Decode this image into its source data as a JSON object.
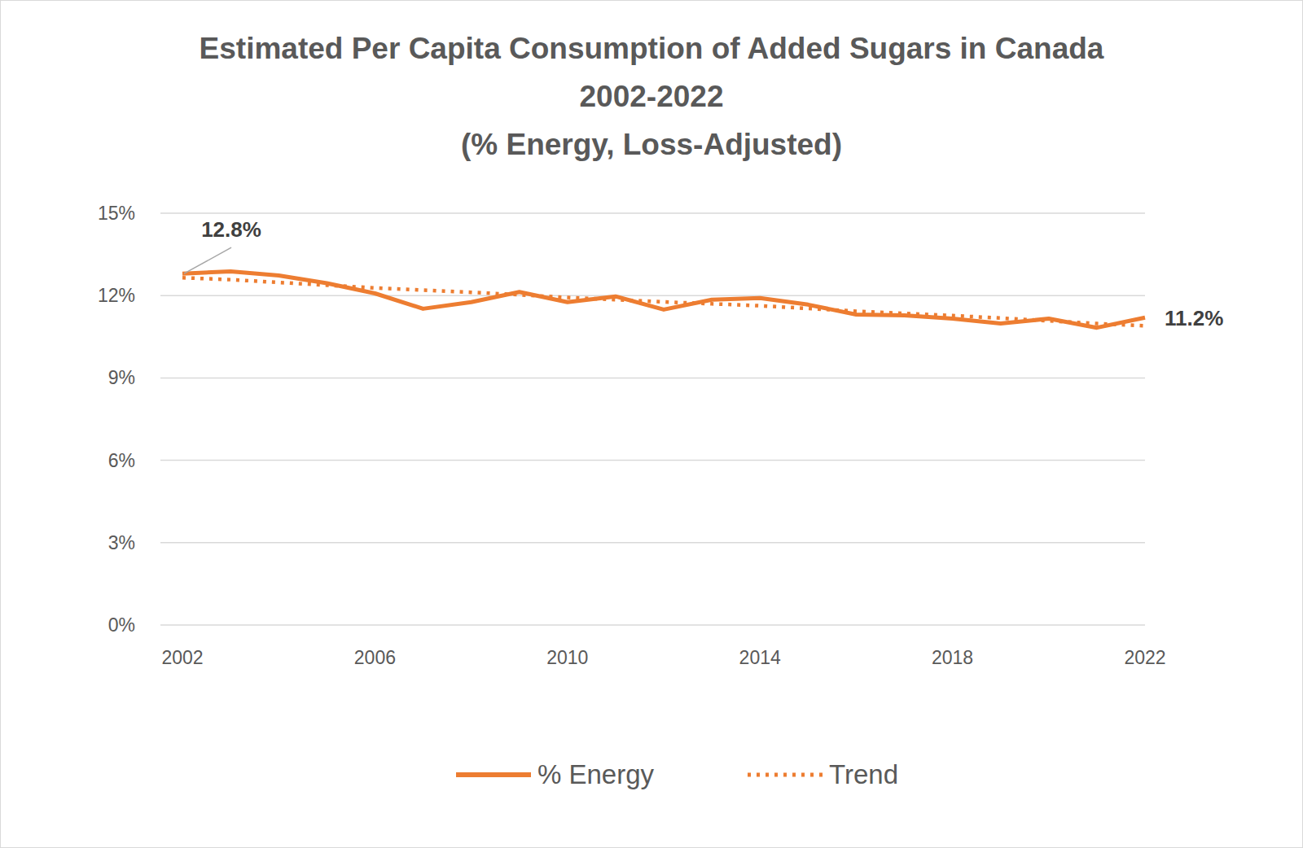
{
  "chart_data": {
    "type": "line",
    "title": "Estimated Per Capita Consumption of Added Sugars in Canada\n2002-2022\n(% Energy, Loss-Adjusted)",
    "x": [
      2002,
      2003,
      2004,
      2005,
      2006,
      2007,
      2008,
      2009,
      2010,
      2011,
      2012,
      2013,
      2014,
      2015,
      2016,
      2017,
      2018,
      2019,
      2020,
      2021,
      2022
    ],
    "series": [
      {
        "name": "% Energy",
        "color": "#ed7d31",
        "line_style": "solid",
        "values": [
          12.8,
          12.88,
          12.73,
          12.45,
          12.08,
          11.52,
          11.76,
          12.13,
          11.76,
          11.97,
          11.49,
          11.85,
          11.91,
          11.67,
          11.31,
          11.28,
          11.16,
          10.98,
          11.16,
          10.83,
          11.2
        ]
      },
      {
        "name": "Trend",
        "color": "#ed7d31",
        "line_style": "dotted",
        "values": [
          12.65,
          12.58,
          12.48,
          12.38,
          12.28,
          12.2,
          12.12,
          12.03,
          11.93,
          11.85,
          11.77,
          11.7,
          11.63,
          11.53,
          11.43,
          11.35,
          11.27,
          11.18,
          11.08,
          10.98,
          10.9
        ]
      }
    ],
    "xlim": [
      2002,
      2022
    ],
    "xticks": [
      2002,
      2006,
      2010,
      2014,
      2018,
      2022
    ],
    "ylim": [
      0,
      15
    ],
    "yticks": [
      {
        "value": 0,
        "label": "0%"
      },
      {
        "value": 3,
        "label": "3%"
      },
      {
        "value": 6,
        "label": "6%"
      },
      {
        "value": 9,
        "label": "9%"
      },
      {
        "value": 12,
        "label": "12%"
      },
      {
        "value": 15,
        "label": "15%"
      }
    ],
    "annotations": [
      {
        "text": "12.8%",
        "x": 2002,
        "y": 12.8
      },
      {
        "text": "11.2%",
        "x": 2022,
        "y": 11.2
      }
    ],
    "grid": true,
    "legend": "bottom"
  }
}
